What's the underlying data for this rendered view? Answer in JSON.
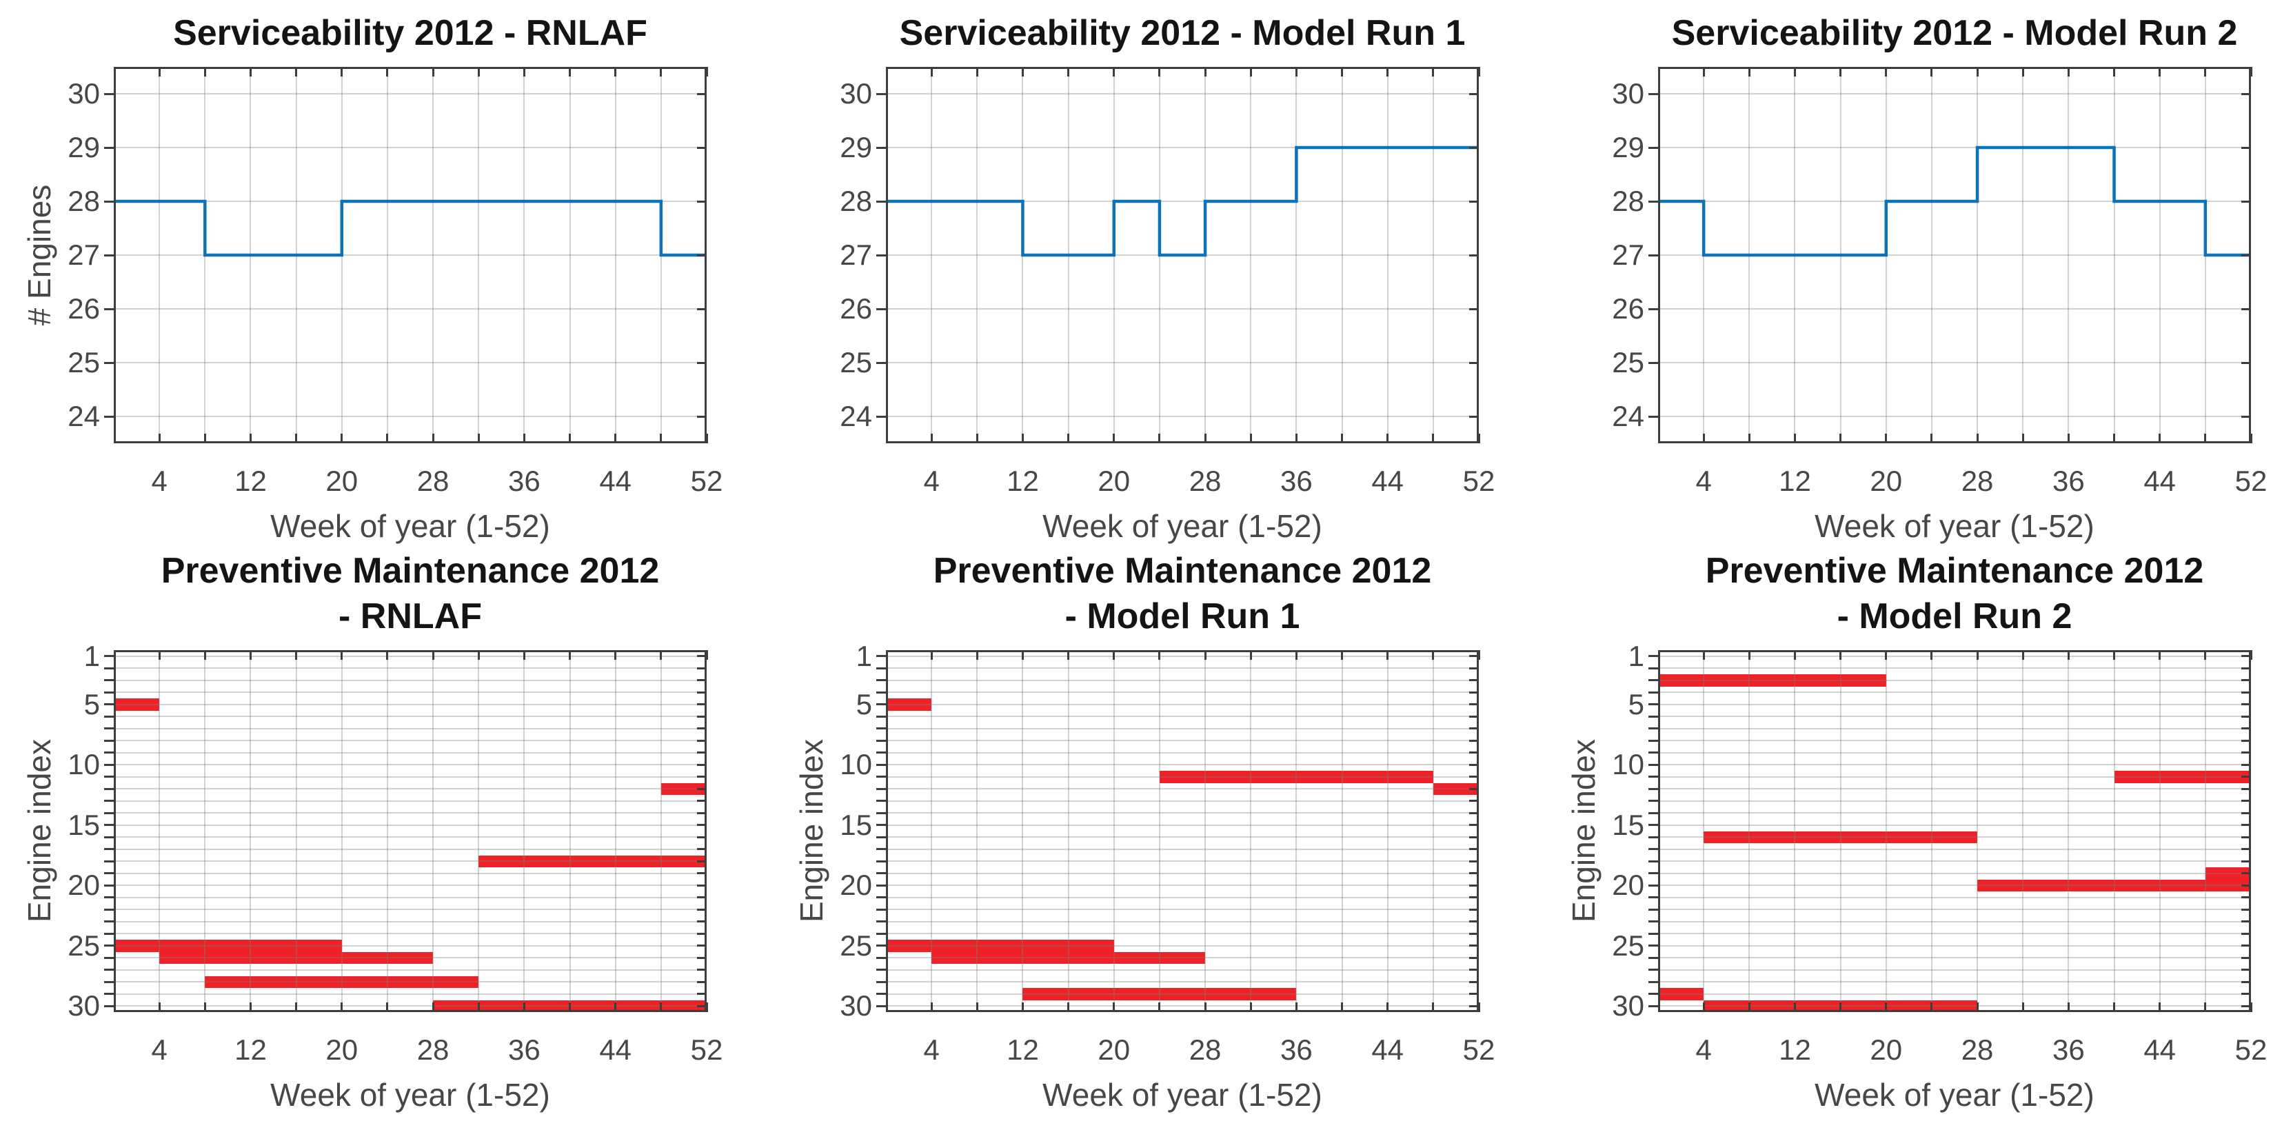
{
  "figure": {
    "background": "#ffffff",
    "axis_color": "#3d3d3d",
    "label_color": "#474747",
    "title_color": "#141414",
    "grid_color_rgba": "rgba(125,125,125,0.35)",
    "line_color": "#0d72b8",
    "bar_color": "#ee2226"
  },
  "chart_data": [
    {
      "type": "line",
      "line_style": "step",
      "title_line1": "Serviceability 2012 - RNLAF",
      "title_line2": "",
      "xlabel": "Week of year (1-52)",
      "ylabel": "# Engines",
      "xlim": [
        0,
        52
      ],
      "ylim": [
        23.5,
        30.5
      ],
      "y_reversed": false,
      "grid": true,
      "xticks_labeled": [
        4,
        12,
        20,
        28,
        36,
        44,
        52
      ],
      "xtick_minor_step": 4,
      "yticks_labeled": [
        24,
        25,
        26,
        27,
        28,
        29,
        30
      ],
      "segments": [
        {
          "from": 0,
          "to": 8,
          "engines": 28
        },
        {
          "from": 8,
          "to": 20,
          "engines": 27
        },
        {
          "from": 20,
          "to": 48,
          "engines": 28
        },
        {
          "from": 48,
          "to": 52,
          "engines": 27
        }
      ]
    },
    {
      "type": "line",
      "line_style": "step",
      "title_line1": "Serviceability 2012 - Model Run 1",
      "title_line2": "",
      "xlabel": "Week of year (1-52)",
      "ylabel": "",
      "xlim": [
        0,
        52
      ],
      "ylim": [
        23.5,
        30.5
      ],
      "y_reversed": false,
      "grid": true,
      "xticks_labeled": [
        4,
        12,
        20,
        28,
        36,
        44,
        52
      ],
      "xtick_minor_step": 4,
      "yticks_labeled": [
        24,
        25,
        26,
        27,
        28,
        29,
        30
      ],
      "segments": [
        {
          "from": 0,
          "to": 12,
          "engines": 28
        },
        {
          "from": 12,
          "to": 20,
          "engines": 27
        },
        {
          "from": 20,
          "to": 24,
          "engines": 28
        },
        {
          "from": 24,
          "to": 28,
          "engines": 27
        },
        {
          "from": 28,
          "to": 36,
          "engines": 28
        },
        {
          "from": 36,
          "to": 52,
          "engines": 29
        }
      ]
    },
    {
      "type": "line",
      "line_style": "step",
      "title_line1": "Serviceability 2012 - Model Run 2",
      "title_line2": "",
      "xlabel": "Week of year (1-52)",
      "ylabel": "",
      "xlim": [
        0,
        52
      ],
      "ylim": [
        23.5,
        30.5
      ],
      "y_reversed": false,
      "grid": true,
      "xticks_labeled": [
        4,
        12,
        20,
        28,
        36,
        44,
        52
      ],
      "xtick_minor_step": 4,
      "yticks_labeled": [
        24,
        25,
        26,
        27,
        28,
        29,
        30
      ],
      "segments": [
        {
          "from": 0,
          "to": 4,
          "engines": 28
        },
        {
          "from": 4,
          "to": 20,
          "engines": 27
        },
        {
          "from": 20,
          "to": 28,
          "engines": 28
        },
        {
          "from": 28,
          "to": 40,
          "engines": 29
        },
        {
          "from": 40,
          "to": 48,
          "engines": 28
        },
        {
          "from": 48,
          "to": 52,
          "engines": 27
        }
      ]
    },
    {
      "type": "bar",
      "bar_style": "horizontal-gantt",
      "title_line1": "Preventive Maintenance 2012",
      "title_line2": "- RNLAF",
      "xlabel": "Week of year (1-52)",
      "ylabel": "Engine index",
      "xlim": [
        0,
        52
      ],
      "ylim": [
        0.5,
        30.5
      ],
      "y_reversed": true,
      "grid": true,
      "xticks_labeled": [
        4,
        12,
        20,
        28,
        36,
        44,
        52
      ],
      "xtick_minor_step": 4,
      "yticks_labeled": [
        1,
        5,
        10,
        15,
        20,
        25,
        30
      ],
      "bars": [
        {
          "engine": 5,
          "from": 0,
          "to": 4
        },
        {
          "engine": 12,
          "from": 48,
          "to": 52
        },
        {
          "engine": 18,
          "from": 32,
          "to": 52
        },
        {
          "engine": 25,
          "from": 0,
          "to": 20
        },
        {
          "engine": 26,
          "from": 4,
          "to": 28
        },
        {
          "engine": 28,
          "from": 8,
          "to": 32
        },
        {
          "engine": 30,
          "from": 28,
          "to": 52
        }
      ]
    },
    {
      "type": "bar",
      "bar_style": "horizontal-gantt",
      "title_line1": "Preventive Maintenance 2012",
      "title_line2": "- Model Run 1",
      "xlabel": "Week of year (1-52)",
      "ylabel": "Engine index",
      "xlim": [
        0,
        52
      ],
      "ylim": [
        0.5,
        30.5
      ],
      "y_reversed": true,
      "grid": true,
      "xticks_labeled": [
        4,
        12,
        20,
        28,
        36,
        44,
        52
      ],
      "xtick_minor_step": 4,
      "yticks_labeled": [
        1,
        5,
        10,
        15,
        20,
        25,
        30
      ],
      "bars": [
        {
          "engine": 5,
          "from": 0,
          "to": 4
        },
        {
          "engine": 11,
          "from": 24,
          "to": 48
        },
        {
          "engine": 12,
          "from": 48,
          "to": 52
        },
        {
          "engine": 25,
          "from": 0,
          "to": 20
        },
        {
          "engine": 26,
          "from": 4,
          "to": 28
        },
        {
          "engine": 29,
          "from": 12,
          "to": 36
        }
      ]
    },
    {
      "type": "bar",
      "bar_style": "horizontal-gantt",
      "title_line1": "Preventive Maintenance 2012",
      "title_line2": "- Model Run 2",
      "xlabel": "Week of year (1-52)",
      "ylabel": "Engine index",
      "xlim": [
        0,
        52
      ],
      "ylim": [
        0.5,
        30.5
      ],
      "y_reversed": true,
      "grid": true,
      "xticks_labeled": [
        4,
        12,
        20,
        28,
        36,
        44,
        52
      ],
      "xtick_minor_step": 4,
      "yticks_labeled": [
        1,
        5,
        10,
        15,
        20,
        25,
        30
      ],
      "bars": [
        {
          "engine": 3,
          "from": 0,
          "to": 20
        },
        {
          "engine": 11,
          "from": 40,
          "to": 52
        },
        {
          "engine": 16,
          "from": 4,
          "to": 28
        },
        {
          "engine": 19,
          "from": 48,
          "to": 52
        },
        {
          "engine": 20,
          "from": 28,
          "to": 52
        },
        {
          "engine": 29,
          "from": 0,
          "to": 4
        },
        {
          "engine": 30,
          "from": 4,
          "to": 28
        }
      ]
    }
  ]
}
